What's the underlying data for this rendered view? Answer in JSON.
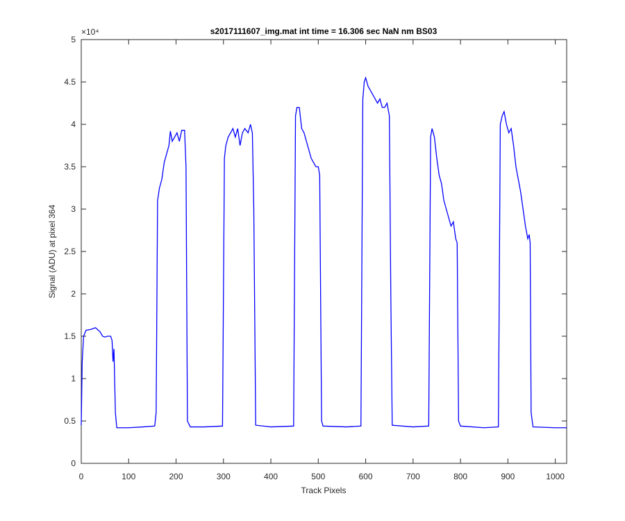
{
  "chart_data": {
    "type": "line",
    "title": "s2017111607_img.mat int time = 16.306 sec  NaN nm BS03",
    "x_label": "Track Pixels",
    "y_label": "Signal (ADU) at pixel 364",
    "y_multiplier": "×10⁴",
    "xlim": [
      0,
      1024
    ],
    "ylim": [
      0,
      5
    ],
    "xticks": [
      0,
      100,
      200,
      300,
      400,
      500,
      600,
      700,
      800,
      900,
      1000
    ],
    "yticks": [
      0,
      0.5,
      1,
      1.5,
      2,
      2.5,
      3,
      3.5,
      4,
      4.5,
      5
    ],
    "grid": false,
    "x": [
      0,
      2,
      5,
      10,
      20,
      30,
      40,
      45,
      50,
      55,
      62,
      65,
      67,
      69,
      70,
      72,
      75,
      100,
      130,
      155,
      158,
      161,
      165,
      170,
      175,
      180,
      185,
      188,
      192,
      197,
      202,
      207,
      212,
      218,
      221,
      224,
      230,
      260,
      298,
      302,
      305,
      310,
      315,
      320,
      325,
      330,
      335,
      340,
      345,
      352,
      357,
      361,
      364,
      368,
      400,
      448,
      452,
      455,
      460,
      465,
      470,
      475,
      480,
      485,
      490,
      495,
      500,
      503,
      507,
      510,
      560,
      590,
      594,
      597,
      600,
      605,
      610,
      615,
      620,
      625,
      630,
      635,
      640,
      645,
      650,
      653,
      656,
      700,
      733,
      737,
      740,
      745,
      750,
      755,
      760,
      765,
      770,
      775,
      780,
      785,
      790,
      793,
      796,
      800,
      850,
      880,
      884,
      888,
      892,
      897,
      902,
      907,
      912,
      917,
      922,
      927,
      932,
      937,
      942,
      945,
      947,
      949,
      953,
      1000,
      1024
    ],
    "series": [
      {
        "name": "Signal",
        "color": "#0000ff",
        "values": [
          0.45,
          1.2,
          1.5,
          1.57,
          1.58,
          1.6,
          1.55,
          1.5,
          1.49,
          1.5,
          1.5,
          1.45,
          1.2,
          1.35,
          1.1,
          0.6,
          0.42,
          0.42,
          0.43,
          0.44,
          0.6,
          3.1,
          3.25,
          3.35,
          3.55,
          3.65,
          3.75,
          3.92,
          3.8,
          3.85,
          3.9,
          3.8,
          3.93,
          3.93,
          3.5,
          0.5,
          0.43,
          0.43,
          0.44,
          3.6,
          3.75,
          3.85,
          3.9,
          3.95,
          3.85,
          3.95,
          3.75,
          3.9,
          3.95,
          3.9,
          4.0,
          3.9,
          3.0,
          0.45,
          0.43,
          0.44,
          4.1,
          4.2,
          4.2,
          3.95,
          3.9,
          3.8,
          3.7,
          3.6,
          3.55,
          3.5,
          3.5,
          3.4,
          0.5,
          0.44,
          0.43,
          0.44,
          4.3,
          4.5,
          4.55,
          4.45,
          4.4,
          4.35,
          4.3,
          4.25,
          4.3,
          4.2,
          4.2,
          4.25,
          4.1,
          2.0,
          0.45,
          0.43,
          0.44,
          3.85,
          3.95,
          3.85,
          3.6,
          3.4,
          3.3,
          3.1,
          3.0,
          2.9,
          2.8,
          2.85,
          2.65,
          2.6,
          0.5,
          0.44,
          0.42,
          0.43,
          4.0,
          4.1,
          4.15,
          4.0,
          3.9,
          3.95,
          3.75,
          3.5,
          3.35,
          3.2,
          3.0,
          2.8,
          2.65,
          2.7,
          2.6,
          0.6,
          0.43,
          0.42,
          0.42
        ]
      }
    ]
  }
}
